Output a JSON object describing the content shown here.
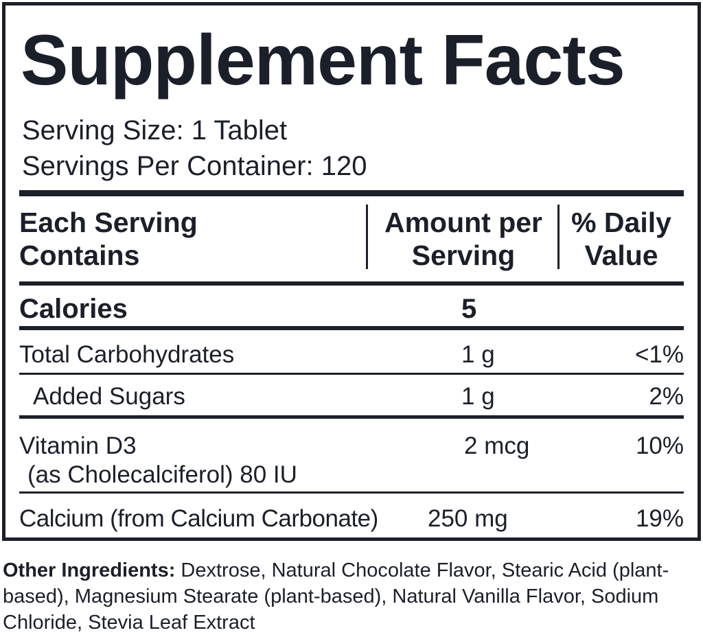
{
  "title": "Supplement Facts",
  "serving_size": "Serving Size: 1 Tablet",
  "servings_per_container": "Servings Per Container: 120",
  "table": {
    "header": [
      [
        "Each Serving",
        "Contains"
      ],
      [
        "Amount per",
        "Serving"
      ],
      [
        "% Daily",
        "Value"
      ]
    ],
    "rows": [
      {
        "name": [
          "Calories"
        ],
        "amount": "5"
      },
      {
        "name": [
          "Total Carbohydrates"
        ],
        "amount": "1 g",
        "daily_value": "<1%"
      },
      {
        "name": [
          "Added Sugars"
        ],
        "amount": "1 g",
        "daily_value": "2%"
      },
      {
        "name": [
          "Vitamin D3",
          "(as Cholecalciferol) 80 IU"
        ],
        "amount": "2 mcg",
        "daily_value": "10%"
      },
      {
        "name": [
          "Calcium (from Calcium Carbonate)"
        ],
        "amount": "250 mg",
        "daily_value": "19%"
      }
    ]
  },
  "other_ingredients": {
    "label": "Other Ingredients:",
    "text": "Dextrose, Natural Chocolate Flavor, Stearic Acid (plant-based), Magnesium Stearate (plant-based), Natural Vanilla Flavor, Sodium Chloride, Stevia Leaf Extract"
  }
}
